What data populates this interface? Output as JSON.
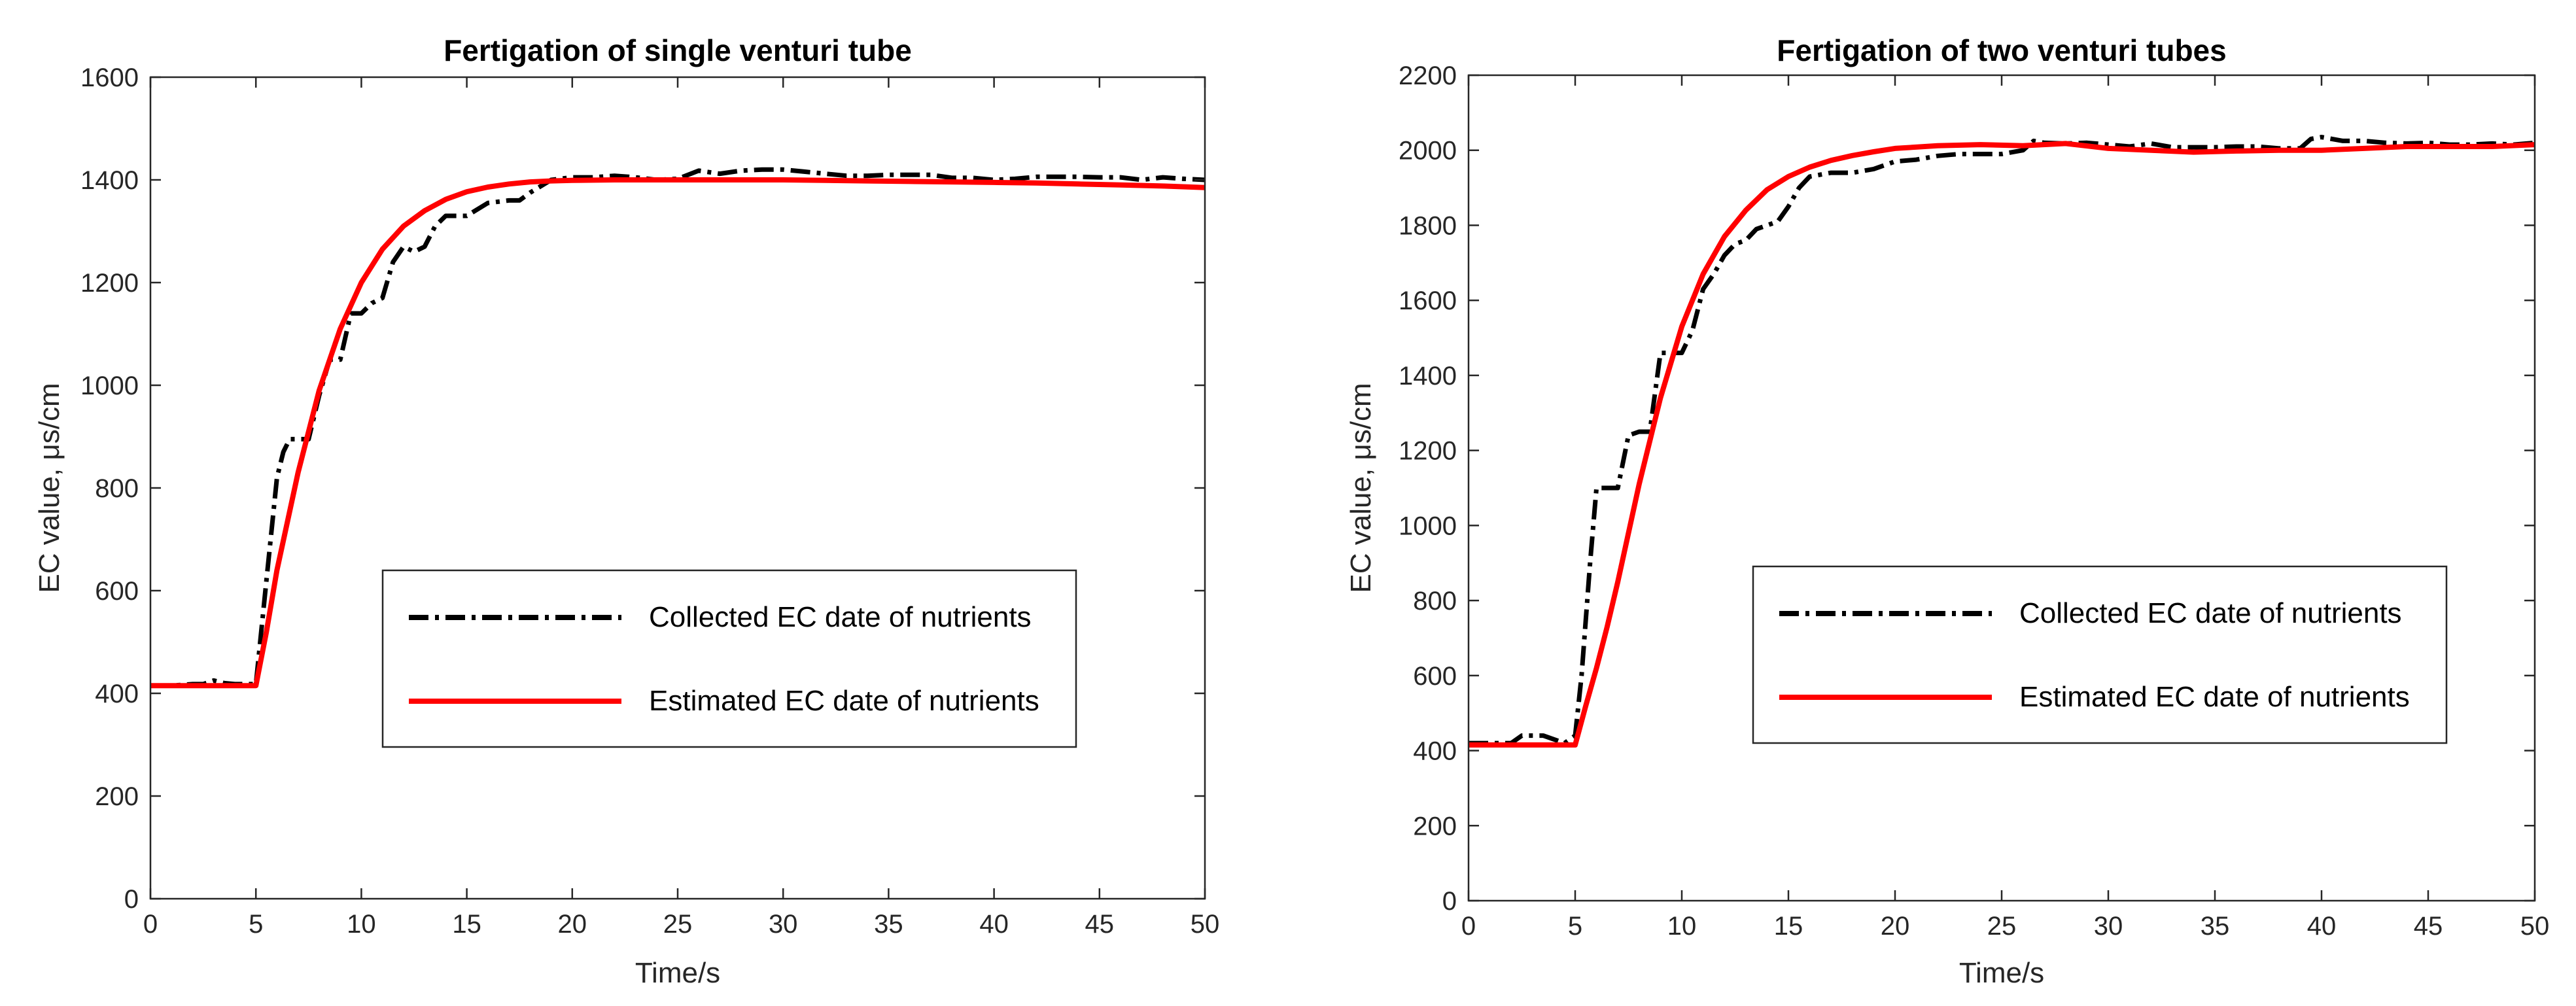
{
  "colors": {
    "collected": "#000000",
    "estimated": "#ff0000",
    "axes": "#262626",
    "background": "#ffffff"
  },
  "chart_data": [
    {
      "type": "line",
      "title": "Fertigation  of single venturi tube",
      "xlabel": "Time/s",
      "ylabel": "EC value, μs/cm",
      "xlim": [
        0,
        50
      ],
      "ylim": [
        0,
        1600
      ],
      "xticks": [
        0,
        5,
        10,
        15,
        20,
        25,
        30,
        35,
        40,
        45,
        50
      ],
      "yticks": [
        0,
        200,
        400,
        600,
        800,
        1000,
        1200,
        1400,
        1600
      ],
      "legend_position": "center-right",
      "series": [
        {
          "name": "Collected EC date of nutrients",
          "style": "dash-dot",
          "x": [
            0,
            1,
            2,
            2.5,
            3,
            3.5,
            4,
            5,
            5.5,
            6,
            6.3,
            6.6,
            7,
            7.5,
            8,
            8.5,
            9,
            9.5,
            10,
            10.5,
            11,
            11.5,
            12,
            12.5,
            13,
            13.5,
            14,
            14.5,
            15,
            16,
            17,
            17.5,
            18,
            19,
            20,
            21,
            22,
            23,
            24,
            25,
            26,
            27,
            28,
            29,
            30,
            31,
            32,
            33,
            34,
            35,
            36,
            37,
            38,
            39,
            40,
            41,
            42,
            43,
            44,
            45,
            46,
            47,
            48,
            49,
            50
          ],
          "y": [
            415,
            415,
            418,
            418,
            425,
            420,
            418,
            418,
            620,
            820,
            870,
            895,
            895,
            895,
            980,
            1050,
            1050,
            1140,
            1140,
            1160,
            1170,
            1240,
            1270,
            1260,
            1270,
            1310,
            1330,
            1330,
            1330,
            1355,
            1360,
            1360,
            1375,
            1400,
            1405,
            1405,
            1408,
            1405,
            1400,
            1402,
            1418,
            1412,
            1418,
            1420,
            1420,
            1416,
            1412,
            1408,
            1408,
            1410,
            1410,
            1410,
            1404,
            1404,
            1400,
            1402,
            1406,
            1406,
            1406,
            1405,
            1405,
            1400,
            1405,
            1402,
            1400
          ]
        },
        {
          "name": "Estimated EC date of nutrients",
          "style": "solid",
          "x": [
            0,
            1,
            2,
            3,
            4,
            5,
            5.5,
            6,
            7,
            8,
            9,
            10,
            11,
            12,
            13,
            14,
            15,
            16,
            17,
            18,
            19,
            20,
            22,
            24,
            26,
            28,
            30,
            32,
            34,
            36,
            38,
            40,
            42,
            44,
            46,
            48,
            50
          ],
          "y": [
            415,
            415,
            415,
            415,
            415,
            415,
            520,
            640,
            830,
            990,
            1110,
            1200,
            1265,
            1310,
            1340,
            1362,
            1377,
            1386,
            1392,
            1396,
            1398,
            1399,
            1400,
            1400,
            1400,
            1400,
            1400,
            1399,
            1398,
            1397,
            1396,
            1395,
            1394,
            1392,
            1390,
            1388,
            1385
          ]
        }
      ]
    },
    {
      "type": "line",
      "title": "Fertigation  of two venturi tubes",
      "xlabel": "Time/s",
      "ylabel": "EC value, μs/cm",
      "xlim": [
        0,
        50
      ],
      "ylim": [
        0,
        2200
      ],
      "xticks": [
        0,
        5,
        10,
        15,
        20,
        25,
        30,
        35,
        40,
        45,
        50
      ],
      "yticks": [
        0,
        200,
        400,
        600,
        800,
        1000,
        1200,
        1400,
        1600,
        1800,
        2000,
        2200
      ],
      "legend_position": "center-right",
      "series": [
        {
          "name": "Collected EC date of nutrients",
          "style": "dash-dot",
          "x": [
            0,
            1,
            2,
            2.5,
            3,
            3.5,
            4,
            4.5,
            5,
            5.3,
            5.7,
            6,
            6.5,
            7,
            7.5,
            8,
            8.5,
            9,
            9.5,
            10,
            10.5,
            11,
            11.5,
            12,
            12.5,
            13,
            13.5,
            14,
            14.5,
            15,
            15.5,
            16,
            17,
            18,
            19,
            20,
            21,
            22,
            23,
            24,
            25,
            26,
            26.5,
            27,
            28,
            29,
            30,
            31,
            32,
            33,
            34,
            35,
            36,
            37,
            38,
            39,
            39.5,
            40,
            41,
            42,
            43,
            44,
            45,
            46,
            47,
            48,
            49,
            50
          ],
          "y": [
            420,
            420,
            420,
            440,
            440,
            440,
            430,
            420,
            440,
            600,
            900,
            1100,
            1100,
            1100,
            1240,
            1250,
            1250,
            1460,
            1460,
            1460,
            1520,
            1630,
            1670,
            1720,
            1750,
            1760,
            1790,
            1800,
            1810,
            1850,
            1900,
            1930,
            1940,
            1940,
            1950,
            1970,
            1975,
            1985,
            1990,
            1990,
            1990,
            2000,
            2025,
            2020,
            2018,
            2020,
            2015,
            2010,
            2018,
            2008,
            2008,
            2008,
            2010,
            2010,
            2005,
            2005,
            2030,
            2035,
            2025,
            2025,
            2020,
            2018,
            2020,
            2015,
            2015,
            2018,
            2015,
            2020
          ]
        },
        {
          "name": "Estimated EC date of nutrients",
          "style": "solid",
          "x": [
            0,
            1,
            2,
            3,
            4,
            5,
            5.5,
            6,
            6.5,
            7,
            8,
            9,
            10,
            11,
            12,
            13,
            14,
            15,
            16,
            17,
            18,
            19,
            20,
            22,
            24,
            26,
            28,
            30,
            32,
            34,
            36,
            38,
            40,
            42,
            44,
            46,
            48,
            50
          ],
          "y": [
            415,
            415,
            415,
            415,
            415,
            415,
            520,
            620,
            730,
            850,
            1110,
            1340,
            1530,
            1670,
            1770,
            1840,
            1895,
            1930,
            1955,
            1973,
            1986,
            1996,
            2005,
            2012,
            2015,
            2012,
            2018,
            2005,
            2000,
            1995,
            1998,
            2000,
            2000,
            2005,
            2010,
            2010,
            2010,
            2015
          ]
        }
      ]
    }
  ]
}
